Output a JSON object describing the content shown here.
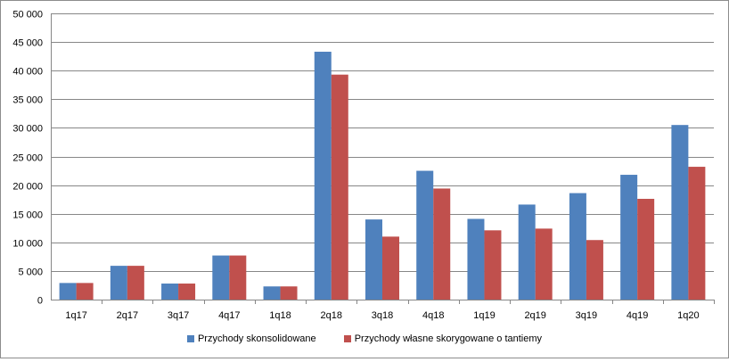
{
  "chart_data": {
    "type": "bar",
    "categories": [
      "1q17",
      "2q17",
      "3q17",
      "4q17",
      "1q18",
      "2q18",
      "3q18",
      "4q18",
      "1q19",
      "2q19",
      "3q19",
      "4q19",
      "1q20"
    ],
    "series": [
      {
        "name": "Przychody skonsolidowane",
        "color": "#4f81bd",
        "values": [
          2900,
          5900,
          2800,
          7700,
          2300,
          43300,
          14000,
          22500,
          14100,
          16600,
          18600,
          21800,
          30500
        ]
      },
      {
        "name": "Przychody własne skorygowane o tantiemy",
        "color": "#c0504d",
        "values": [
          2900,
          5900,
          2800,
          7700,
          2300,
          39300,
          11000,
          19400,
          12100,
          12400,
          10400,
          17600,
          23200
        ]
      }
    ],
    "yticks": [
      "0",
      "5 000",
      "10 000",
      "15 000",
      "20 000",
      "25 000",
      "30 000",
      "35 000",
      "40 000",
      "45 000",
      "50 000"
    ],
    "ylim": [
      0,
      50000
    ],
    "grid": true,
    "legend_position": "bottom"
  }
}
